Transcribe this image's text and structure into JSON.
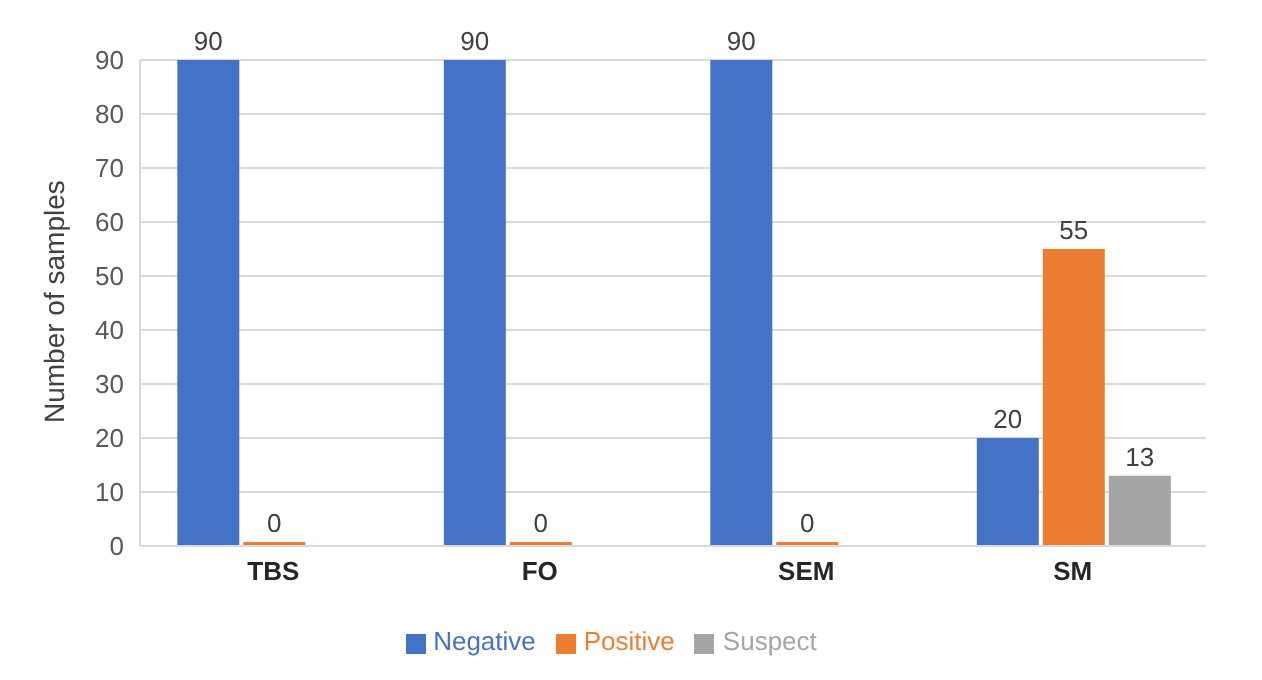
{
  "chart_data": {
    "type": "bar",
    "ylabel": "Number of samples",
    "categories": [
      "TBS",
      "FO",
      "SEM",
      "SM"
    ],
    "series": [
      {
        "name": "Negative",
        "color": "#4472c4",
        "values": [
          90,
          90,
          90,
          20
        ]
      },
      {
        "name": "Positive",
        "color": "#ed7d31",
        "values": [
          0,
          0,
          0,
          55
        ]
      },
      {
        "name": "Suspect",
        "color": "#a5a5a5",
        "values": [
          null,
          null,
          null,
          13
        ]
      }
    ],
    "ylim": [
      0,
      90
    ],
    "yticks": [
      0,
      10,
      20,
      30,
      40,
      50,
      60,
      70,
      80,
      90
    ],
    "grid": "y",
    "legend": "bottom",
    "data_labels": true
  }
}
